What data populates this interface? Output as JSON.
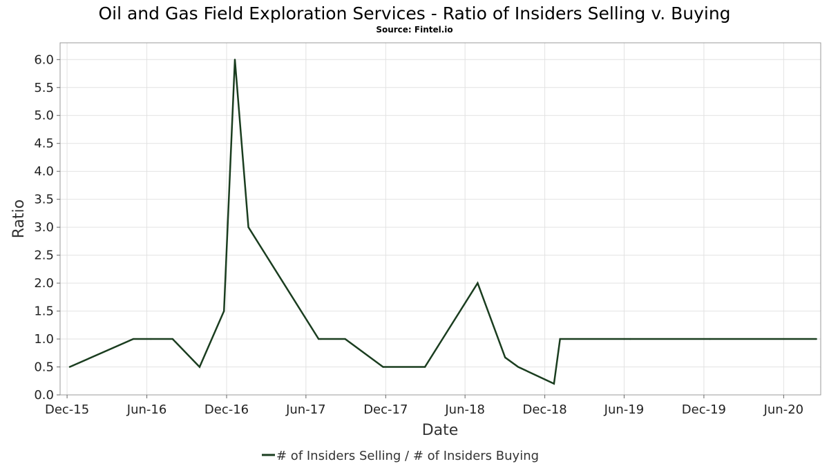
{
  "chart_data": {
    "type": "line",
    "title": "Oil and Gas Field Exploration Services - Ratio of Insiders Selling v. Buying",
    "subtitle": "Source: Fintel.io",
    "xlabel": "Date",
    "ylabel": "Ratio",
    "ylim": [
      0,
      6.3
    ],
    "xlim": [
      "2015-11-15",
      "2020-08-25"
    ],
    "y_ticks": [
      "0.0",
      "0.5",
      "1.0",
      "1.5",
      "2.0",
      "2.5",
      "3.0",
      "3.5",
      "4.0",
      "4.5",
      "5.0",
      "5.5",
      "6.0"
    ],
    "y_tick_values": [
      0,
      0.5,
      1,
      1.5,
      2,
      2.5,
      3,
      3.5,
      4,
      4.5,
      5,
      5.5,
      6
    ],
    "x_ticks": [
      "Dec-15",
      "Jun-16",
      "Dec-16",
      "Jun-17",
      "Dec-17",
      "Jun-18",
      "Dec-18",
      "Jun-19",
      "Dec-19",
      "Jun-20"
    ],
    "x_tick_dates": [
      "2015-12-01",
      "2016-06-01",
      "2016-12-01",
      "2017-06-01",
      "2017-12-01",
      "2018-06-01",
      "2018-12-01",
      "2019-06-01",
      "2019-12-01",
      "2020-06-01"
    ],
    "grid": true,
    "legend_position": "bottom-center",
    "series": [
      {
        "name": "# of Insiders Selling / # of Insiders Buying",
        "color": "#1a3d1f",
        "x": [
          "2015-12-07",
          "2016-05-01",
          "2016-06-10",
          "2016-07-30",
          "2016-09-30",
          "2016-11-25",
          "2016-12-20",
          "2017-01-20",
          "2017-06-30",
          "2017-07-05",
          "2017-08-30",
          "2017-11-25",
          "2018-03-01",
          "2018-06-30",
          "2018-09-01",
          "2018-10-01",
          "2018-12-22",
          "2019-01-05",
          "2019-06-01",
          "2019-06-15",
          "2019-12-15",
          "2020-08-15"
        ],
        "values": [
          0.5,
          1.0,
          1.0,
          1.0,
          0.5,
          1.5,
          6.0,
          3.0,
          1.0,
          1.0,
          1.0,
          0.5,
          0.5,
          2.0,
          0.67,
          0.5,
          0.2,
          1.0,
          1.0,
          1.0,
          1.0,
          1.0
        ]
      }
    ]
  }
}
